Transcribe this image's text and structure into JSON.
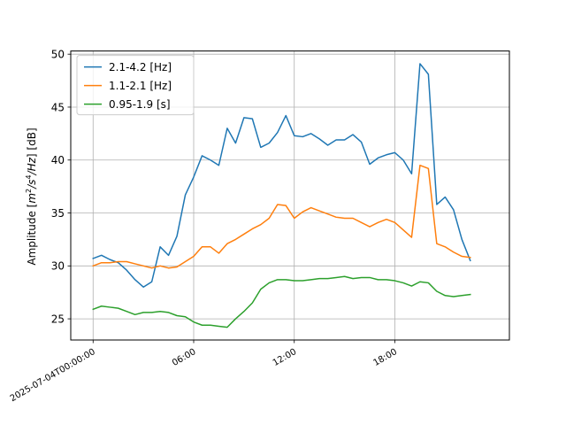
{
  "chart_data": {
    "type": "line",
    "title": "",
    "xlabel": "",
    "ylabel_parts": [
      "Amplitude [",
      "m",
      "2",
      "/",
      "s",
      "4",
      "/",
      "Hz",
      "] [dB]"
    ],
    "x_axis_type": "datetime",
    "xlim": [
      "2025-07-03T22:40",
      "2025-07-05T00:50"
    ],
    "ylim": [
      23.0,
      50.3
    ],
    "x_ticks": [
      "2025-07-04T00:00",
      "2025-07-04T06:00",
      "2025-07-04T12:00",
      "2025-07-04T18:00"
    ],
    "x_tick_labels": [
      "2025-07-04T00:00:00",
      "06:00",
      "12:00",
      "18:00"
    ],
    "y_ticks": [
      25,
      30,
      35,
      40,
      45,
      50
    ],
    "grid": true,
    "legend_position": "upper-left",
    "x": [
      "2025-07-04T00:00",
      "2025-07-04T00:30",
      "2025-07-04T01:00",
      "2025-07-04T01:30",
      "2025-07-04T02:00",
      "2025-07-04T02:30",
      "2025-07-04T03:00",
      "2025-07-04T03:30",
      "2025-07-04T04:00",
      "2025-07-04T04:30",
      "2025-07-04T05:00",
      "2025-07-04T05:30",
      "2025-07-04T06:00",
      "2025-07-04T06:30",
      "2025-07-04T07:00",
      "2025-07-04T07:30",
      "2025-07-04T08:00",
      "2025-07-04T08:30",
      "2025-07-04T09:00",
      "2025-07-04T09:30",
      "2025-07-04T10:00",
      "2025-07-04T10:30",
      "2025-07-04T11:00",
      "2025-07-04T11:30",
      "2025-07-04T12:00",
      "2025-07-04T12:30",
      "2025-07-04T13:00",
      "2025-07-04T13:30",
      "2025-07-04T14:00",
      "2025-07-04T14:30",
      "2025-07-04T15:00",
      "2025-07-04T15:30",
      "2025-07-04T16:00",
      "2025-07-04T16:30",
      "2025-07-04T17:00",
      "2025-07-04T17:30",
      "2025-07-04T18:00",
      "2025-07-04T18:30",
      "2025-07-04T19:00",
      "2025-07-04T19:30",
      "2025-07-04T20:00",
      "2025-07-04T20:30",
      "2025-07-04T21:00",
      "2025-07-04T21:30",
      "2025-07-04T22:00",
      "2025-07-04T22:30"
    ],
    "series": [
      {
        "name": "2.1-4.2 [Hz]",
        "color": "#1f77b4",
        "values": [
          30.7,
          31.0,
          30.6,
          30.3,
          29.6,
          28.7,
          28.0,
          28.5,
          31.8,
          31.0,
          32.8,
          36.7,
          38.4,
          40.4,
          40.0,
          39.5,
          43.0,
          41.6,
          44.0,
          43.9,
          41.2,
          41.6,
          42.6,
          44.2,
          42.3,
          42.2,
          42.5,
          42.0,
          41.4,
          41.9,
          41.9,
          42.4,
          41.7,
          39.6,
          40.2,
          40.5,
          40.7,
          40.0,
          38.7,
          49.1,
          48.1,
          35.8,
          36.5,
          35.3,
          32.5,
          30.5
        ]
      },
      {
        "name": "1.1-2.1 [Hz]",
        "color": "#ff7f0e",
        "values": [
          30.0,
          30.3,
          30.3,
          30.4,
          30.4,
          30.2,
          30.0,
          29.8,
          30.0,
          29.8,
          29.9,
          30.4,
          30.9,
          31.8,
          31.8,
          31.2,
          32.1,
          32.5,
          33.0,
          33.5,
          33.9,
          34.5,
          35.8,
          35.7,
          34.5,
          35.1,
          35.5,
          35.2,
          34.9,
          34.6,
          34.5,
          34.5,
          34.1,
          33.7,
          34.1,
          34.4,
          34.1,
          33.4,
          32.7,
          39.5,
          39.2,
          32.1,
          31.8,
          31.3,
          30.9,
          30.8
        ]
      },
      {
        "name": "0.95-1.9 [s]",
        "color": "#2ca02c",
        "values": [
          25.9,
          26.2,
          26.1,
          26.0,
          25.7,
          25.4,
          25.6,
          25.6,
          25.7,
          25.6,
          25.3,
          25.2,
          24.7,
          24.4,
          24.4,
          24.3,
          24.2,
          25.0,
          25.7,
          26.5,
          27.8,
          28.4,
          28.7,
          28.7,
          28.6,
          28.6,
          28.7,
          28.8,
          28.8,
          28.9,
          29.0,
          28.8,
          28.9,
          28.9,
          28.7,
          28.7,
          28.6,
          28.4,
          28.1,
          28.5,
          28.4,
          27.6,
          27.2,
          27.1,
          27.2,
          27.3
        ]
      }
    ]
  }
}
